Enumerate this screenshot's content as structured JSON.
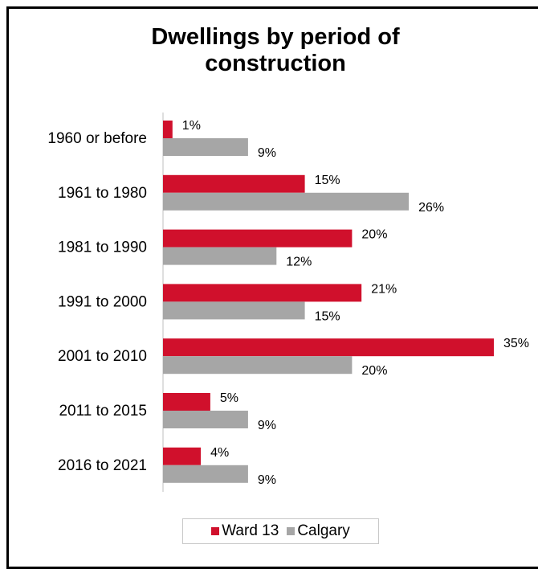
{
  "chart_data": {
    "type": "bar",
    "orientation": "horizontal",
    "title": "Dwellings by period of construction",
    "title_lines": [
      "Dwellings by period of",
      "construction"
    ],
    "categories": [
      "1960 or before",
      "1961 to 1980",
      "1981 to 1990",
      "1991 to 2000",
      "2001 to 2010",
      "2011 to 2015",
      "2016 to 2021"
    ],
    "series": [
      {
        "name": "Ward 13",
        "color": "#d0102c",
        "values": [
          1,
          15,
          20,
          21,
          35,
          5,
          4
        ],
        "labels": [
          "1%",
          "15%",
          "20%",
          "21%",
          "35%",
          "5%",
          "4%"
        ]
      },
      {
        "name": "Calgary",
        "color": "#a6a6a6",
        "values": [
          9,
          26,
          12,
          15,
          20,
          9,
          9
        ],
        "labels": [
          "9%",
          "26%",
          "12%",
          "15%",
          "20%",
          "9%",
          "9%"
        ]
      }
    ],
    "xlim": [
      0,
      35
    ],
    "grid": false,
    "legend_position": "bottom"
  }
}
